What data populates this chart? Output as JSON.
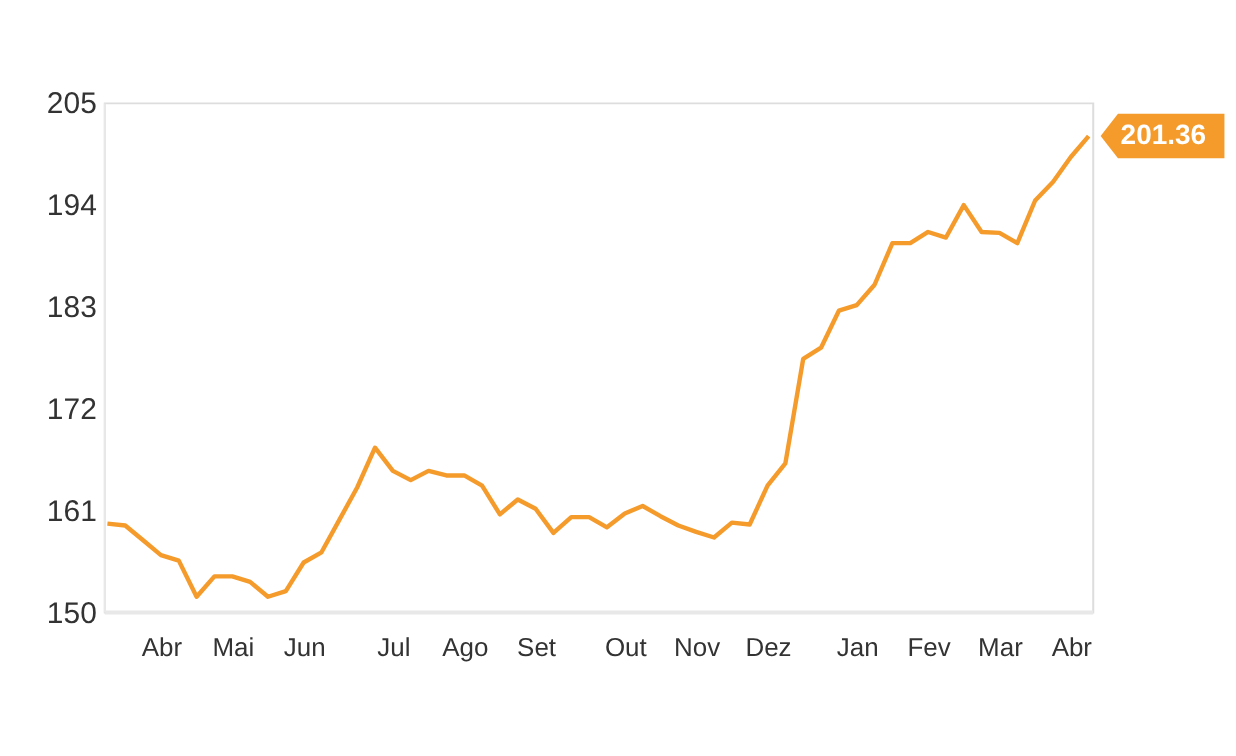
{
  "chart_data": {
    "type": "line",
    "categories": [
      null,
      null,
      null,
      "Abr",
      null,
      null,
      null,
      "Mai",
      null,
      null,
      null,
      "Jun",
      null,
      null,
      null,
      null,
      "Jul",
      null,
      null,
      null,
      "Ago",
      null,
      null,
      null,
      "Set",
      null,
      null,
      null,
      null,
      "Out",
      null,
      null,
      null,
      "Nov",
      null,
      null,
      null,
      "Dez",
      null,
      null,
      null,
      null,
      "Jan",
      null,
      null,
      null,
      "Fev",
      null,
      null,
      null,
      "Mar",
      null,
      null,
      null,
      "Abr",
      null
    ],
    "series": [
      {
        "color": "#f49b2c",
        "values": [
          159.5,
          159.3,
          157.7,
          156.1,
          155.5,
          151.6,
          153.8,
          153.8,
          153.2,
          151.6,
          152.2,
          155.3,
          156.4,
          159.9,
          163.4,
          167.7,
          165.2,
          164.2,
          165.2,
          164.7,
          164.7,
          163.6,
          160.5,
          162.1,
          161.1,
          158.5,
          160.2,
          160.2,
          159.1,
          160.6,
          161.4,
          160.3,
          159.3,
          158.6,
          158.0,
          159.6,
          159.4,
          163.6,
          166.0,
          177.3,
          178.5,
          182.5,
          183.1,
          185.3,
          189.8,
          189.8,
          191.0,
          190.4,
          193.9,
          191.0,
          190.9,
          189.8,
          194.4,
          196.4,
          199.1,
          201.36
        ],
        "value_labels": [
          null,
          null,
          null,
          null,
          null,
          null,
          null,
          null,
          null,
          null,
          null,
          null,
          null,
          null,
          null,
          null,
          null,
          null,
          null,
          null,
          null,
          null,
          null,
          null,
          null,
          null,
          null,
          null,
          null,
          null,
          null,
          null,
          null,
          null,
          null,
          null,
          null,
          null,
          null,
          null,
          null,
          null,
          null,
          null,
          null,
          null,
          null,
          null,
          null,
          null,
          null,
          null,
          null,
          null,
          null,
          "201.36"
        ]
      }
    ],
    "ylim": [
      150,
      205
    ],
    "yticks": [
      150,
      161,
      172,
      183,
      194,
      205
    ],
    "grid": false,
    "marker": "none",
    "line_style": "solid"
  }
}
